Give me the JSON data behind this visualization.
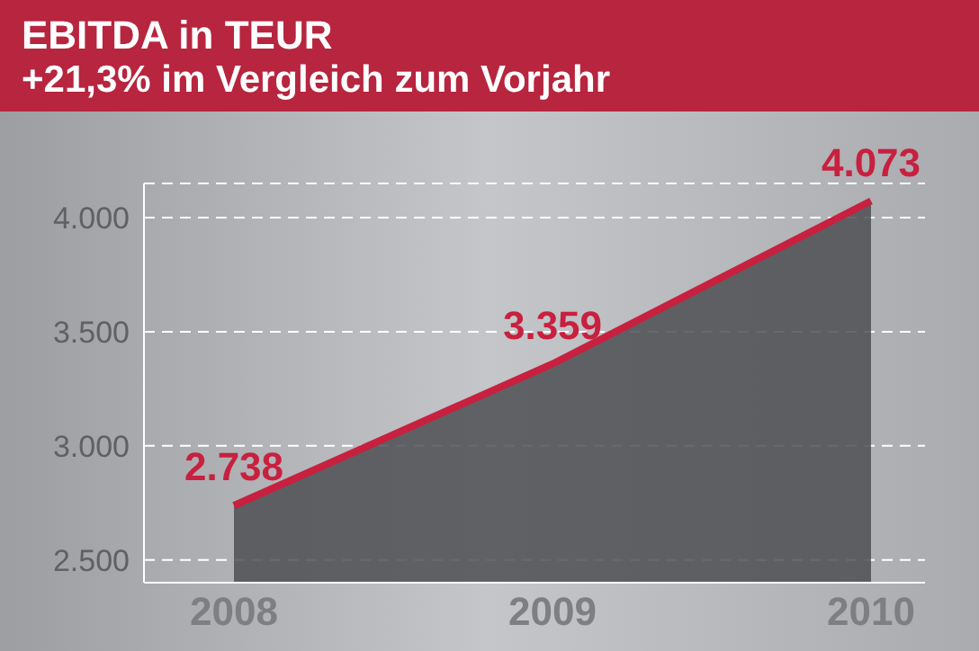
{
  "chart_data": {
    "type": "area",
    "title": "EBITDA in TEUR",
    "subtitle": "+21,3% im Vergleich zum Vorjahr",
    "categories": [
      "2008",
      "2009",
      "2010"
    ],
    "series": [
      {
        "color": "#c8203f",
        "values": [
          2738,
          3359,
          4073
        ],
        "value_labels": [
          "2.738",
          "3.359",
          "4.073"
        ]
      }
    ],
    "ylim": [
      2400,
      4150
    ],
    "yticks": [
      {
        "value": 2500,
        "label": "2.500"
      },
      {
        "value": 3000,
        "label": "3.000"
      },
      {
        "value": 3500,
        "label": "3.500"
      },
      {
        "value": 4000,
        "label": "4.000"
      }
    ],
    "grid": "y"
  }
}
